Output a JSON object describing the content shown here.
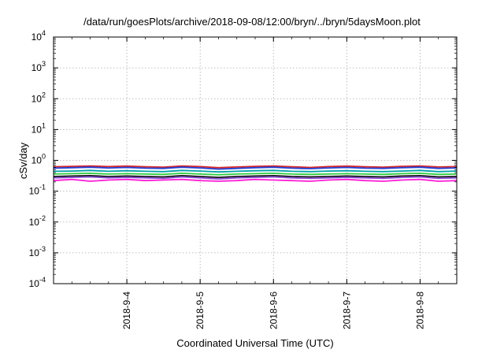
{
  "chart_data": {
    "type": "line",
    "title": "/data/run/goesPlots/archive/2018-09-08/12:00/bryn/../bryn/5daysMoon.plot",
    "xlabel": "Coordinated Universal Time (UTC)",
    "ylabel": "cSv/day",
    "x_range": [
      "2018-09-03T00:00",
      "2018-09-08T12:00"
    ],
    "y_range": [
      0.0001,
      10000
    ],
    "y_scale": "log",
    "grid": true,
    "legend": "none",
    "y_ticks": [
      {
        "value": 0.0001,
        "base": "10",
        "exp": "-4"
      },
      {
        "value": 0.001,
        "base": "10",
        "exp": "-3"
      },
      {
        "value": 0.01,
        "base": "10",
        "exp": "-2"
      },
      {
        "value": 0.1,
        "base": "10",
        "exp": "-1"
      },
      {
        "value": 1,
        "base": "10",
        "exp": "0"
      },
      {
        "value": 10,
        "base": "10",
        "exp": "1"
      },
      {
        "value": 100,
        "base": "10",
        "exp": "2"
      },
      {
        "value": 1000,
        "base": "10",
        "exp": "3"
      },
      {
        "value": 10000,
        "base": "10",
        "exp": "4"
      }
    ],
    "x_ticks": [
      {
        "value": "2018-09-04T00:00",
        "label": "2018-9-4"
      },
      {
        "value": "2018-09-05T00:00",
        "label": "2018-9-5"
      },
      {
        "value": "2018-09-06T00:00",
        "label": "2018-9-6"
      },
      {
        "value": "2018-09-07T00:00",
        "label": "2018-9-7"
      },
      {
        "value": "2018-09-08T00:00",
        "label": "2018-9-8"
      }
    ],
    "x": [
      "2018-09-03T00:00",
      "2018-09-03T06:00",
      "2018-09-03T12:00",
      "2018-09-03T18:00",
      "2018-09-04T00:00",
      "2018-09-04T06:00",
      "2018-09-04T12:00",
      "2018-09-04T18:00",
      "2018-09-05T00:00",
      "2018-09-05T06:00",
      "2018-09-05T12:00",
      "2018-09-05T18:00",
      "2018-09-06T00:00",
      "2018-09-06T06:00",
      "2018-09-06T12:00",
      "2018-09-06T18:00",
      "2018-09-07T00:00",
      "2018-09-07T06:00",
      "2018-09-07T12:00",
      "2018-09-07T18:00",
      "2018-09-08T00:00",
      "2018-09-08T06:00",
      "2018-09-08T12:00"
    ],
    "series": [
      {
        "color": "#d62728",
        "values": [
          0.62,
          0.64,
          0.66,
          0.63,
          0.65,
          0.62,
          0.6,
          0.66,
          0.63,
          0.58,
          0.61,
          0.64,
          0.66,
          0.62,
          0.59,
          0.63,
          0.65,
          0.62,
          0.6,
          0.64,
          0.66,
          0.61,
          0.63
        ]
      },
      {
        "color": "#1f3fd6",
        "values": [
          0.56,
          0.58,
          0.6,
          0.57,
          0.59,
          0.56,
          0.55,
          0.6,
          0.57,
          0.52,
          0.55,
          0.58,
          0.6,
          0.56,
          0.54,
          0.57,
          0.59,
          0.56,
          0.55,
          0.58,
          0.6,
          0.55,
          0.57
        ]
      },
      {
        "color": "#00a0a8",
        "values": [
          0.44,
          0.45,
          0.47,
          0.44,
          0.46,
          0.44,
          0.43,
          0.47,
          0.45,
          0.42,
          0.44,
          0.46,
          0.47,
          0.44,
          0.43,
          0.45,
          0.46,
          0.44,
          0.43,
          0.45,
          0.47,
          0.43,
          0.45
        ]
      },
      {
        "color": "#2ecc40",
        "values": [
          0.36,
          0.37,
          0.38,
          0.36,
          0.37,
          0.36,
          0.35,
          0.38,
          0.36,
          0.34,
          0.36,
          0.37,
          0.38,
          0.36,
          0.35,
          0.36,
          0.37,
          0.36,
          0.35,
          0.37,
          0.38,
          0.35,
          0.36
        ]
      },
      {
        "color": "#111111",
        "values": [
          0.3,
          0.31,
          0.32,
          0.3,
          0.31,
          0.3,
          0.29,
          0.32,
          0.3,
          0.28,
          0.3,
          0.31,
          0.32,
          0.3,
          0.29,
          0.3,
          0.31,
          0.3,
          0.29,
          0.31,
          0.32,
          0.29,
          0.3
        ]
      },
      {
        "color": "#8a4dd6",
        "values": [
          0.27,
          0.28,
          0.29,
          0.27,
          0.28,
          0.27,
          0.26,
          0.29,
          0.27,
          0.25,
          0.27,
          0.28,
          0.29,
          0.27,
          0.26,
          0.27,
          0.28,
          0.27,
          0.26,
          0.28,
          0.29,
          0.26,
          0.27
        ]
      },
      {
        "color": "#ff1fd6",
        "values": [
          0.22,
          0.24,
          0.21,
          0.23,
          0.24,
          0.22,
          0.23,
          0.24,
          0.22,
          0.21,
          0.22,
          0.24,
          0.23,
          0.22,
          0.21,
          0.23,
          0.24,
          0.22,
          0.21,
          0.23,
          0.24,
          0.21,
          0.22
        ]
      }
    ]
  }
}
